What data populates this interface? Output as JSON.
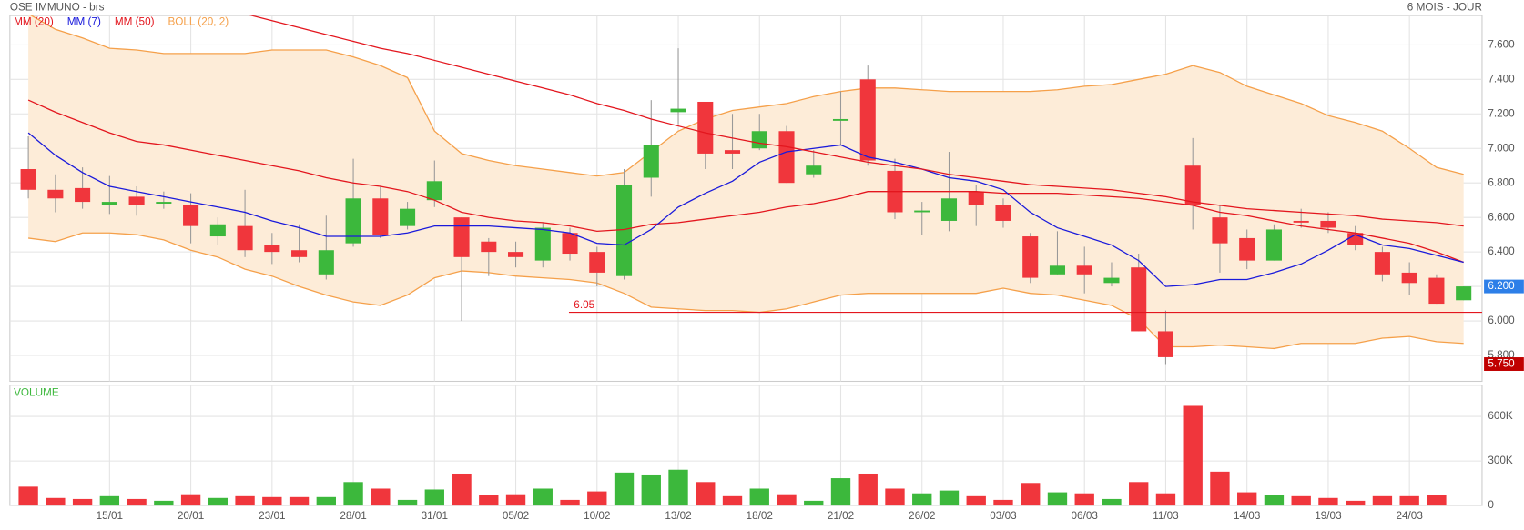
{
  "chart_data": [
    {
      "type": "candlestick",
      "title": "OSE IMMUNO - brs",
      "subtitle": "6 MOIS - JOUR",
      "categories": [
        null,
        null,
        null,
        "15/01",
        null,
        null,
        "20/01",
        null,
        null,
        "23/01",
        null,
        null,
        "28/01",
        null,
        null,
        "31/01",
        null,
        null,
        "05/02",
        null,
        null,
        "10/02",
        null,
        null,
        "13/02",
        null,
        null,
        "18/02",
        null,
        null,
        "21/02",
        null,
        null,
        "26/02",
        null,
        null,
        "03/03",
        null,
        null,
        "06/03",
        null,
        null,
        "11/03",
        null,
        null,
        "14/03",
        null,
        null,
        "19/03",
        null,
        null,
        "24/03",
        null,
        null
      ],
      "open": [
        6.88,
        6.76,
        6.77,
        6.67,
        6.72,
        6.68,
        6.67,
        6.49,
        6.55,
        6.44,
        6.41,
        6.27,
        6.45,
        6.71,
        6.55,
        6.7,
        6.6,
        6.46,
        6.4,
        6.35,
        6.51,
        6.4,
        6.26,
        6.83,
        7.21,
        7.27,
        6.99,
        7.0,
        7.1,
        6.85,
        7.16,
        7.4,
        6.87,
        6.63,
        6.58,
        6.75,
        6.67,
        6.49,
        6.27,
        6.32,
        6.22,
        6.31,
        5.94,
        6.9,
        6.6,
        6.48,
        6.35,
        6.58,
        6.58,
        6.51,
        6.4,
        6.28,
        6.25,
        6.12
      ],
      "high": [
        7.07,
        6.85,
        6.89,
        6.84,
        6.78,
        6.75,
        6.74,
        6.6,
        6.76,
        6.51,
        6.56,
        6.61,
        6.94,
        6.78,
        6.69,
        6.93,
        6.6,
        6.48,
        6.46,
        6.57,
        6.54,
        6.43,
        6.88,
        7.28,
        7.58,
        7.27,
        7.2,
        7.2,
        7.13,
        6.99,
        7.33,
        7.48,
        6.94,
        6.69,
        6.98,
        6.79,
        6.71,
        6.51,
        6.52,
        6.43,
        6.34,
        6.39,
        6.06,
        7.06,
        6.67,
        6.53,
        6.56,
        6.65,
        6.63,
        6.55,
        6.43,
        6.34,
        6.27,
        6.2
      ],
      "low": [
        6.71,
        6.63,
        6.65,
        6.62,
        6.61,
        6.65,
        6.45,
        6.44,
        6.37,
        6.33,
        6.34,
        6.24,
        6.43,
        6.48,
        6.53,
        6.66,
        6.0,
        6.26,
        6.31,
        6.31,
        6.35,
        6.2,
        6.24,
        6.72,
        7.14,
        6.88,
        6.88,
        6.99,
        6.8,
        6.83,
        7.02,
        6.9,
        6.59,
        6.5,
        6.52,
        6.55,
        6.54,
        6.22,
        6.27,
        6.16,
        6.2,
        5.94,
        5.75,
        6.53,
        6.28,
        6.3,
        6.35,
        6.54,
        6.51,
        6.41,
        6.23,
        6.15,
        6.1,
        6.12
      ],
      "close": [
        6.76,
        6.71,
        6.69,
        6.69,
        6.67,
        6.69,
        6.55,
        6.56,
        6.41,
        6.4,
        6.37,
        6.41,
        6.71,
        6.5,
        6.65,
        6.81,
        6.37,
        6.4,
        6.37,
        6.54,
        6.39,
        6.28,
        6.79,
        7.02,
        7.23,
        6.97,
        6.97,
        7.1,
        6.8,
        6.9,
        7.17,
        6.93,
        6.63,
        6.64,
        6.71,
        6.67,
        6.58,
        6.25,
        6.32,
        6.27,
        6.25,
        5.94,
        5.79,
        6.67,
        6.45,
        6.35,
        6.53,
        6.57,
        6.54,
        6.44,
        6.27,
        6.22,
        6.1,
        6.2
      ],
      "up_color": "#3cb83c",
      "down_color": "#f0363c",
      "series": [
        {
          "name": "MM (20)",
          "color": "#e3161e",
          "values": [
            7.28,
            7.21,
            7.15,
            7.09,
            7.04,
            7.02,
            6.99,
            6.96,
            6.93,
            6.9,
            6.87,
            6.83,
            6.8,
            6.78,
            6.75,
            6.7,
            6.63,
            6.6,
            6.58,
            6.57,
            6.55,
            6.52,
            6.53,
            6.56,
            6.57,
            6.59,
            6.61,
            6.63,
            6.66,
            6.68,
            6.71,
            6.75,
            6.75,
            6.75,
            6.75,
            6.75,
            6.74,
            6.74,
            6.74,
            6.73,
            6.72,
            6.71,
            6.69,
            6.67,
            6.63,
            6.61,
            6.58,
            6.55,
            6.53,
            6.51,
            6.48,
            6.45,
            6.4,
            6.34
          ]
        },
        {
          "name": "MM (7)",
          "color": "#1a1adb",
          "values": [
            7.09,
            6.96,
            6.86,
            6.78,
            6.75,
            6.72,
            6.69,
            6.66,
            6.63,
            6.58,
            6.54,
            6.49,
            6.49,
            6.49,
            6.51,
            6.55,
            6.55,
            6.55,
            6.54,
            6.53,
            6.51,
            6.45,
            6.44,
            6.53,
            6.66,
            6.74,
            6.81,
            6.92,
            6.98,
            7.0,
            7.02,
            6.95,
            6.92,
            6.88,
            6.83,
            6.81,
            6.76,
            6.63,
            6.54,
            6.49,
            6.44,
            6.35,
            6.2,
            6.21,
            6.24,
            6.24,
            6.28,
            6.33,
            6.41,
            6.5,
            6.44,
            6.42,
            6.38,
            6.34
          ]
        },
        {
          "name": "MM (50)",
          "color": "#e3161e",
          "values": [
            null,
            null,
            null,
            null,
            null,
            null,
            null,
            null,
            7.78,
            7.74,
            7.7,
            7.66,
            7.62,
            7.58,
            7.55,
            7.51,
            7.47,
            7.43,
            7.39,
            7.35,
            7.31,
            7.26,
            7.22,
            7.17,
            7.13,
            7.09,
            7.06,
            7.03,
            7.01,
            6.98,
            6.95,
            6.92,
            6.9,
            6.88,
            6.85,
            6.83,
            6.81,
            6.79,
            6.78,
            6.77,
            6.76,
            6.74,
            6.72,
            6.69,
            6.67,
            6.65,
            6.64,
            6.63,
            6.62,
            6.61,
            6.59,
            6.58,
            6.57,
            6.55
          ]
        },
        {
          "name": "BOLL (20, 2)",
          "color": "#f5a04a",
          "fill": "#fdecd8",
          "upper": [
            7.78,
            7.69,
            7.64,
            7.58,
            7.57,
            7.55,
            7.55,
            7.55,
            7.55,
            7.57,
            7.57,
            7.57,
            7.53,
            7.48,
            7.41,
            7.1,
            6.97,
            6.93,
            6.9,
            6.88,
            6.86,
            6.84,
            6.86,
            6.98,
            7.1,
            7.17,
            7.22,
            7.24,
            7.26,
            7.3,
            7.33,
            7.35,
            7.35,
            7.34,
            7.33,
            7.33,
            7.33,
            7.33,
            7.34,
            7.36,
            7.37,
            7.4,
            7.43,
            7.48,
            7.44,
            7.36,
            7.31,
            7.26,
            7.19,
            7.15,
            7.1,
            7.0,
            6.89,
            6.85
          ],
          "lower": [
            6.48,
            6.46,
            6.51,
            6.51,
            6.5,
            6.47,
            6.41,
            6.37,
            6.3,
            6.26,
            6.2,
            6.15,
            6.11,
            6.09,
            6.15,
            6.25,
            6.29,
            6.28,
            6.26,
            6.25,
            6.24,
            6.22,
            6.16,
            6.08,
            6.07,
            6.06,
            6.06,
            6.05,
            6.07,
            6.11,
            6.15,
            6.16,
            6.16,
            6.16,
            6.16,
            6.16,
            6.19,
            6.16,
            6.15,
            6.12,
            6.09,
            6.01,
            5.85,
            5.85,
            5.86,
            5.85,
            5.84,
            5.87,
            5.87,
            5.87,
            5.9,
            5.91,
            5.88,
            5.87
          ]
        }
      ],
      "level": 6.05,
      "level_color": "#e3161e",
      "last_price": {
        "value": 6.2,
        "label": "6.200"
      },
      "last_color": "#2d7fe8",
      "low_price": {
        "value": 5.75,
        "label": "5.750"
      },
      "low_color": "#c00000",
      "ylim": [
        5.65,
        7.77
      ],
      "yticks": [
        {
          "value": 5.8,
          "label": "5.800"
        },
        {
          "value": 6.0,
          "label": "6.000"
        },
        {
          "value": 6.2,
          "label": "6.200"
        },
        {
          "value": 6.4,
          "label": "6.400"
        },
        {
          "value": 6.6,
          "label": "6.600"
        },
        {
          "value": 6.8,
          "label": "6.800"
        },
        {
          "value": 7.0,
          "label": "7.000"
        },
        {
          "value": 7.2,
          "label": "7.200"
        },
        {
          "value": 7.4,
          "label": "7.400"
        },
        {
          "value": 7.6,
          "label": "7.600"
        }
      ],
      "grid": true
    },
    {
      "type": "bar",
      "label": "VOLUME",
      "label_color": "#3cb83c",
      "values": [
        127000,
        51000,
        44000,
        63000,
        44000,
        32000,
        76000,
        51000,
        63000,
        57000,
        57000,
        57000,
        158000,
        114000,
        38000,
        108000,
        215000,
        70000,
        76000,
        114000,
        38000,
        95000,
        222000,
        209000,
        241000,
        158000,
        63000,
        114000,
        76000,
        32000,
        184000,
        215000,
        114000,
        82000,
        101000,
        63000,
        38000,
        152000,
        89000,
        82000,
        44000,
        158000,
        82000,
        671000,
        228000,
        89000,
        70000,
        63000,
        51000,
        32000,
        63000,
        63000,
        70000,
        0
      ],
      "ylim": [
        0,
        810000
      ],
      "yticks": [
        0,
        {
          "value": 300000,
          "label": "300K"
        },
        {
          "value": 600000,
          "label": "600K"
        }
      ],
      "grid": true
    }
  ]
}
